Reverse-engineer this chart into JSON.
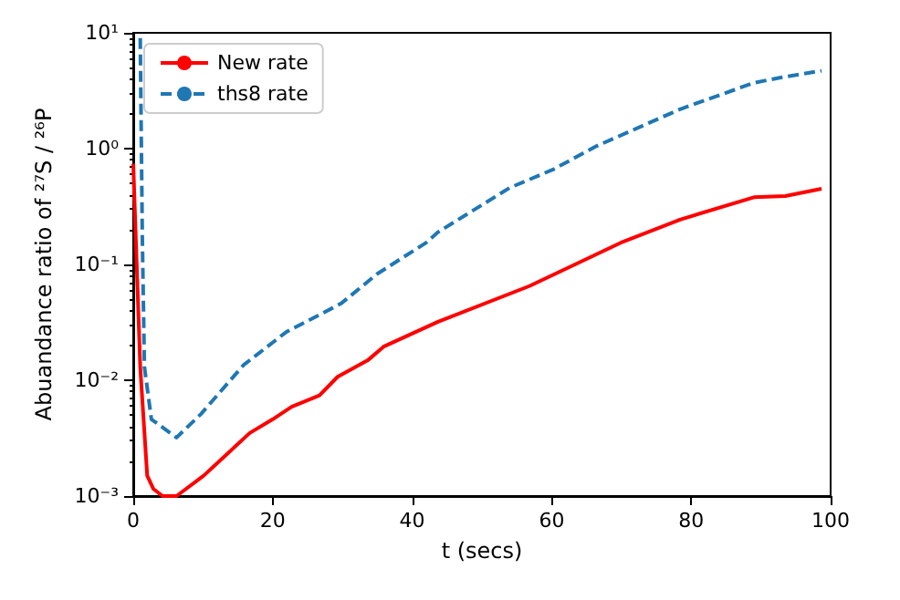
{
  "chart_data": {
    "type": "line",
    "xlabel": "t (secs)",
    "ylabel": "Abuandance ratio of ²⁷S / ²⁶P",
    "xlim": [
      0,
      100
    ],
    "xticks": [
      0,
      20,
      40,
      60,
      80,
      100
    ],
    "ylim": [
      0.001,
      10
    ],
    "yticks": [
      {
        "value": 0.001,
        "label": "10⁻³"
      },
      {
        "value": 0.01,
        "label": "10⁻²"
      },
      {
        "value": 0.1,
        "label": "10⁻¹"
      },
      {
        "value": 1,
        "label": "10⁰"
      },
      {
        "value": 10,
        "label": "10¹"
      }
    ],
    "log": "y",
    "grid": false,
    "legend": "top left",
    "marker": "none",
    "series": [
      {
        "name": "New rate",
        "color": "#ff0000",
        "line_style": "solid",
        "x": [
          0,
          1,
          2,
          2.9,
          4.2,
          6.2,
          10.1,
          16.7,
          20,
          22.7,
          26.7,
          29.3,
          33.7,
          35.9,
          43.7,
          56.8,
          69.9,
          78.5,
          89,
          93.5,
          98.7
        ],
        "values": [
          0.74,
          0.013,
          0.0015,
          0.00115,
          0.001,
          0.001,
          0.0015,
          0.0035,
          0.0046,
          0.0059,
          0.0074,
          0.0107,
          0.015,
          0.0195,
          0.032,
          0.065,
          0.154,
          0.245,
          0.38,
          0.39,
          0.45
        ]
      },
      {
        "name": "ths8 rate",
        "color": "#1f77b4",
        "line_style": "dashed",
        "x": [
          1,
          1.3,
          1.6,
          2.6,
          6.2,
          9.7,
          15.8,
          21.9,
          29.8,
          35,
          42,
          43.7,
          54,
          60.2,
          66.4,
          78.5,
          89,
          92.7,
          98.7
        ],
        "values": [
          9,
          0.17,
          0.013,
          0.0046,
          0.0032,
          0.0051,
          0.0135,
          0.026,
          0.046,
          0.083,
          0.154,
          0.19,
          0.46,
          0.66,
          1.05,
          2.2,
          3.7,
          4.1,
          4.7
        ]
      }
    ]
  }
}
